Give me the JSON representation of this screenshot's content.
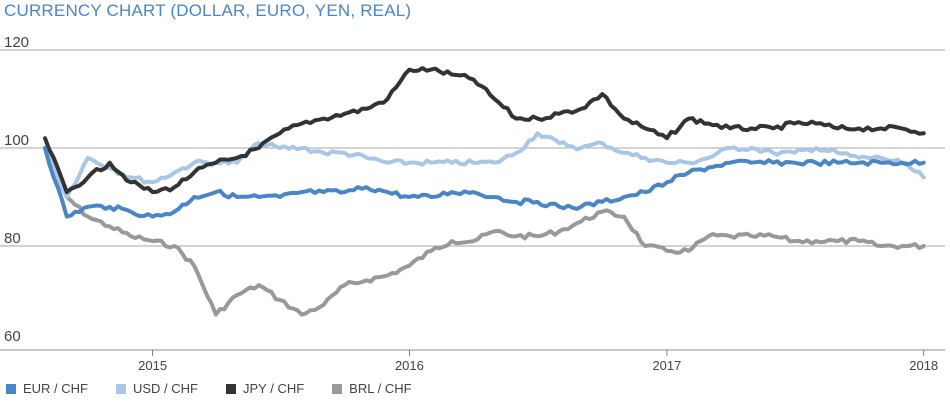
{
  "chart_data": {
    "type": "line",
    "title": "CURRENCY CHART (DOLLAR, EURO, YEN, REAL)",
    "xlabel": "",
    "ylabel": "",
    "ylim": [
      60,
      120
    ],
    "yticks": [
      "60",
      "80",
      "100",
      "120"
    ],
    "xticks": [
      "2015",
      "2016",
      "2017",
      "2018"
    ],
    "grid": true,
    "legend_position": "bottom",
    "x": [
      "2014-08",
      "2014-09",
      "2014-10",
      "2014-11",
      "2014-12",
      "2015-01",
      "2015-02",
      "2015-03",
      "2015-04",
      "2015-05",
      "2015-06",
      "2015-07",
      "2015-08",
      "2015-09",
      "2015-10",
      "2015-11",
      "2015-12",
      "2016-01",
      "2016-02",
      "2016-03",
      "2016-04",
      "2016-05",
      "2016-06",
      "2016-07",
      "2016-08",
      "2016-09",
      "2016-10",
      "2016-11",
      "2016-12",
      "2017-01",
      "2017-02",
      "2017-03",
      "2017-04",
      "2017-05",
      "2017-06",
      "2017-07",
      "2017-08",
      "2017-09",
      "2017-10",
      "2017-11",
      "2017-12",
      "2018-01"
    ],
    "series": [
      {
        "name": "EUR / CHF",
        "color": "#4a86c5",
        "values": [
          100,
          86,
          88,
          88,
          87,
          86,
          87,
          90,
          91,
          90,
          90,
          90,
          91,
          91,
          91,
          92,
          91,
          90,
          90,
          91,
          91,
          90,
          89,
          89,
          88,
          88,
          89,
          90,
          91,
          93,
          95,
          96,
          97,
          97,
          97,
          97,
          97,
          97,
          97,
          97,
          97,
          97
        ]
      },
      {
        "name": "USD / CHF",
        "color": "#a9c6e6",
        "values": [
          100,
          90,
          98,
          96,
          94,
          93,
          95,
          97,
          97,
          97,
          101,
          100,
          100,
          99,
          99,
          98,
          97,
          97,
          97,
          97,
          97,
          97,
          99,
          103,
          101,
          100,
          101,
          99,
          98,
          97,
          97,
          98,
          100,
          100,
          99,
          99,
          100,
          99,
          98,
          98,
          97,
          94
        ]
      },
      {
        "name": "JPY / CHF",
        "color": "#333333",
        "values": [
          102,
          91,
          94,
          97,
          93,
          91,
          92,
          95,
          97,
          98,
          100,
          103,
          105,
          106,
          107,
          108,
          110,
          116,
          116,
          115,
          114,
          110,
          106,
          106,
          107,
          108,
          111,
          106,
          104,
          102,
          106,
          105,
          104,
          104,
          104,
          105,
          105,
          104,
          104,
          104,
          104,
          103
        ]
      },
      {
        "name": "BRL / CHF",
        "color": "#999999",
        "values": [
          100,
          90,
          86,
          84,
          82,
          81,
          80,
          76,
          66,
          70,
          72,
          69,
          66,
          68,
          72,
          73,
          74,
          76,
          79,
          81,
          81,
          83,
          82,
          82,
          83,
          85,
          87,
          86,
          80,
          79,
          79,
          82,
          82,
          82,
          82,
          81,
          81,
          81,
          81,
          80,
          80,
          80
        ]
      }
    ]
  }
}
